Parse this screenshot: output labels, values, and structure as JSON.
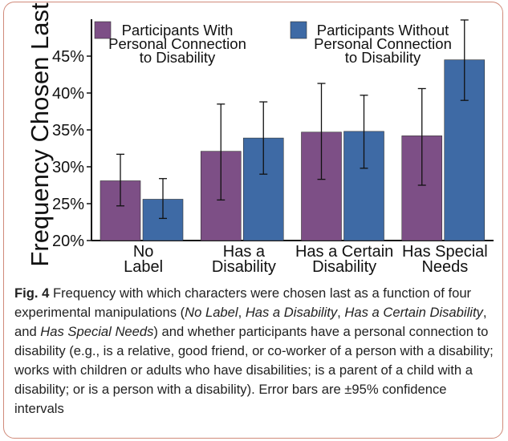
{
  "chart_data": {
    "type": "bar",
    "ylabel": "Frequency Chosen Last",
    "ylim": [
      0.2,
      0.45
    ],
    "yticks": [
      "20%",
      "25%",
      "30%",
      "35%",
      "40%",
      "45%"
    ],
    "categories": [
      [
        "No",
        "Label"
      ],
      [
        "Has a",
        "Disability"
      ],
      [
        "Has a Certain",
        "Disability"
      ],
      [
        "Has Special",
        "Needs"
      ]
    ],
    "series": [
      {
        "name": [
          "Participants With",
          "Personal Connection",
          "to Disability"
        ],
        "color": "#7d4f86",
        "values": [
          0.281,
          0.321,
          0.347,
          0.342
        ],
        "ci_low": [
          0.247,
          0.255,
          0.283,
          0.275
        ],
        "ci_high": [
          0.317,
          0.385,
          0.413,
          0.406
        ]
      },
      {
        "name": [
          "Participants Without",
          "Personal Connection",
          "to Disability"
        ],
        "color": "#3e6aa5",
        "values": [
          0.256,
          0.339,
          0.348,
          0.445
        ],
        "ci_low": [
          0.23,
          0.29,
          0.298,
          0.39
        ],
        "ci_high": [
          0.284,
          0.388,
          0.397,
          0.499
        ]
      }
    ],
    "legend": "top"
  },
  "caption": {
    "label": "Fig. 4",
    "t1": " Frequency with which characters were chosen last as a function of four experimental manipulations (",
    "i1": "No Label",
    "t2": ", ",
    "i2": "Has a Disability",
    "t3": ", ",
    "i3": "Has a Certain Disability",
    "t4": ", and ",
    "i4": "Has Special Needs",
    "t5": ") and whether participants have a personal connection to disability (e.g., is a relative, good friend, or co-worker of a person with a disability; works with children or adults who have disabilities; is a parent of a child with a disability; or is a person with a disability). Error bars are ±95% confidence intervals"
  }
}
